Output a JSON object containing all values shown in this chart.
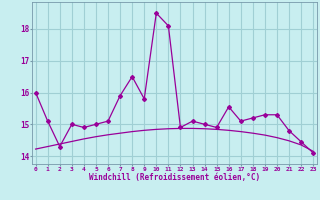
{
  "x": [
    0,
    1,
    2,
    3,
    4,
    5,
    6,
    7,
    8,
    9,
    10,
    11,
    12,
    13,
    14,
    15,
    16,
    17,
    18,
    19,
    20,
    21,
    22,
    23
  ],
  "line1": [
    16.0,
    15.1,
    14.3,
    15.0,
    14.9,
    15.0,
    15.1,
    15.9,
    16.5,
    15.8,
    18.5,
    18.1,
    14.9,
    15.1,
    15.0,
    14.9,
    15.55,
    15.1,
    15.2,
    15.3,
    15.3,
    14.8,
    14.45,
    14.1
  ],
  "line2": [
    14.22,
    14.3,
    14.38,
    14.46,
    14.54,
    14.61,
    14.67,
    14.72,
    14.77,
    14.81,
    14.84,
    14.86,
    14.87,
    14.87,
    14.86,
    14.84,
    14.81,
    14.77,
    14.72,
    14.66,
    14.58,
    14.48,
    14.35,
    14.15
  ],
  "color": "#990099",
  "bgcolor": "#c8eef0",
  "grid_color": "#a0cfd4",
  "ylabel_values": [
    14,
    15,
    16,
    17,
    18
  ],
  "ylim": [
    13.75,
    18.85
  ],
  "xlim": [
    -0.3,
    23.3
  ],
  "xlabel": "Windchill (Refroidissement éolien,°C)"
}
